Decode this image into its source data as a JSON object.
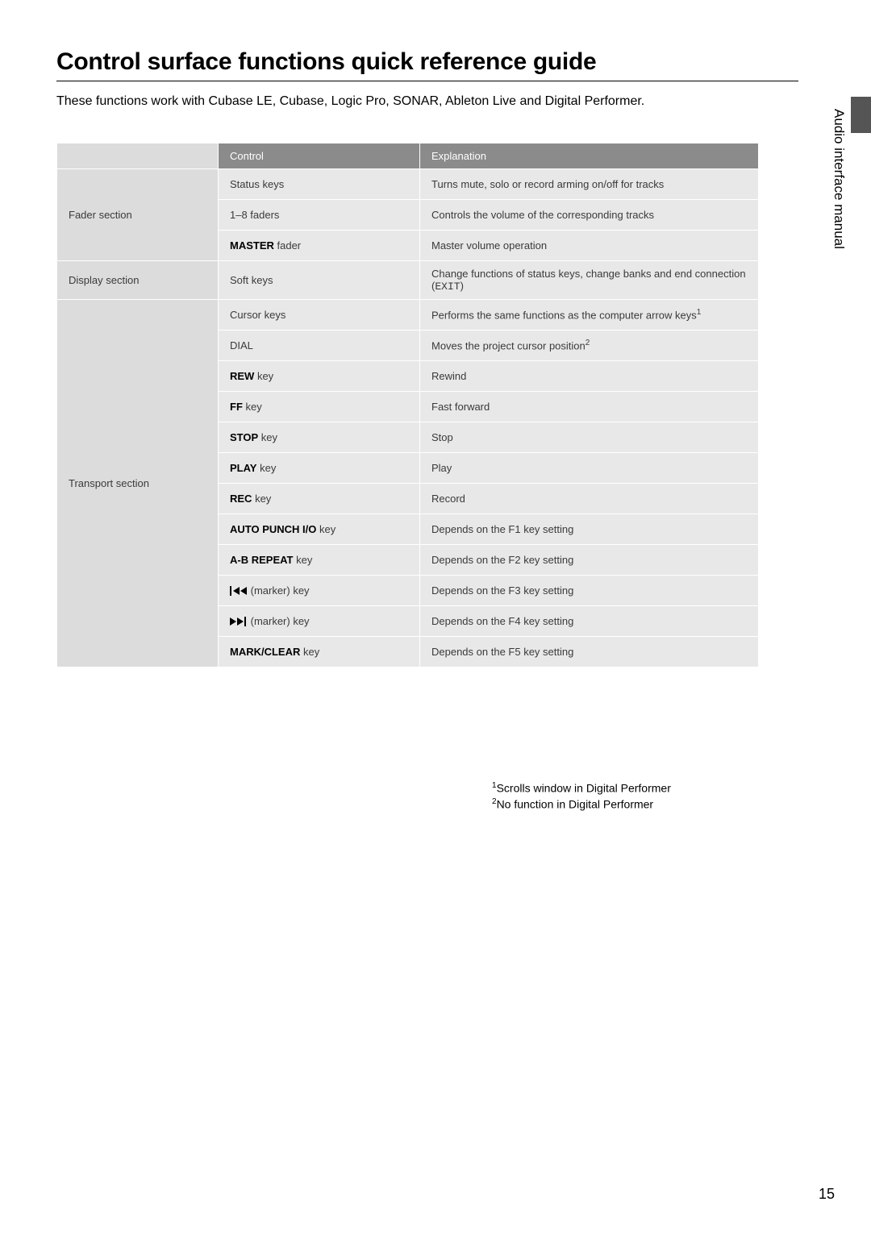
{
  "page": {
    "title": "Control surface functions quick reference guide",
    "intro": "These functions work with Cubase LE, Cubase, Logic Pro, SONAR, Ableton Live and Digital Performer.",
    "side_label": "Audio interface manual",
    "page_number": "15"
  },
  "headers": {
    "section": "",
    "control": "Control",
    "explanation": "Explanation"
  },
  "sections": [
    {
      "name": "Fader section",
      "rowspan": 3
    },
    {
      "name": "Display section",
      "rowspan": 1
    },
    {
      "name": "Transport section",
      "rowspan": 12
    }
  ],
  "rows": [
    {
      "section_idx": 0,
      "control": {
        "text": "Status keys"
      },
      "explanation": {
        "text": "Turns mute, solo or record arming on/off for tracks"
      }
    },
    {
      "section_idx": 0,
      "control": {
        "text": "1–8 faders"
      },
      "explanation": {
        "text": "Controls the volume of the corresponding tracks"
      }
    },
    {
      "section_idx": 0,
      "control": {
        "bold": "MASTER",
        "suffix": " fader"
      },
      "explanation": {
        "text": "Master volume operation"
      }
    },
    {
      "section_idx": 1,
      "control": {
        "text": "Soft keys"
      },
      "explanation": {
        "prefix": "Change functions of status keys, change banks and end connection (",
        "mono": "EXIT",
        "suffix": ")"
      }
    },
    {
      "section_idx": 2,
      "control": {
        "text": "Cursor keys"
      },
      "explanation": {
        "text": "Performs the same functions as the computer arrow keys",
        "sup": "1"
      }
    },
    {
      "section_idx": 2,
      "control": {
        "text": "DIAL"
      },
      "explanation": {
        "text": "Moves the project cursor position",
        "sup": "2"
      }
    },
    {
      "section_idx": 2,
      "control": {
        "bold": "REW",
        "suffix": " key"
      },
      "explanation": {
        "text": "Rewind"
      }
    },
    {
      "section_idx": 2,
      "control": {
        "bold": "FF",
        "suffix": " key"
      },
      "explanation": {
        "text": "Fast forward"
      }
    },
    {
      "section_idx": 2,
      "control": {
        "bold": "STOP",
        "suffix": " key"
      },
      "explanation": {
        "text": "Stop"
      }
    },
    {
      "section_idx": 2,
      "control": {
        "bold": "PLAY",
        "suffix": " key"
      },
      "explanation": {
        "text": "Play"
      }
    },
    {
      "section_idx": 2,
      "control": {
        "bold": "REC",
        "suffix": " key"
      },
      "explanation": {
        "text": "Record"
      }
    },
    {
      "section_idx": 2,
      "control": {
        "bold": "AUTO PUNCH I/O",
        "suffix": " key"
      },
      "explanation": {
        "text": "Depends on the F1 key setting"
      }
    },
    {
      "section_idx": 2,
      "control": {
        "bold": "A-B REPEAT",
        "suffix": " key"
      },
      "explanation": {
        "text": "Depends on the F2 key setting"
      }
    },
    {
      "section_idx": 2,
      "control": {
        "icon": "prev",
        "suffix": " (marker) key"
      },
      "explanation": {
        "text": "Depends on the F3 key setting"
      }
    },
    {
      "section_idx": 2,
      "control": {
        "icon": "next",
        "suffix": " (marker) key"
      },
      "explanation": {
        "text": "Depends on the F4 key setting"
      }
    },
    {
      "section_idx": 2,
      "control": {
        "bold": "MARK/CLEAR",
        "suffix": " key"
      },
      "explanation": {
        "text": "Depends on the F5 key setting"
      }
    }
  ],
  "footnotes": [
    {
      "num": "1",
      "text": "Scrolls window in Digital Performer"
    },
    {
      "num": "2",
      "text": "No function in Digital Performer"
    }
  ],
  "style": {
    "header_bg": "#8b8b8b",
    "header_text": "#ffffff",
    "cell_bg": "#e8e8e8",
    "section_bg": "#dcdcdc",
    "border_color": "#ffffff",
    "text_color": "#3a3a3a",
    "font_size_table": 13,
    "font_size_title": 30,
    "font_size_intro": 16
  }
}
